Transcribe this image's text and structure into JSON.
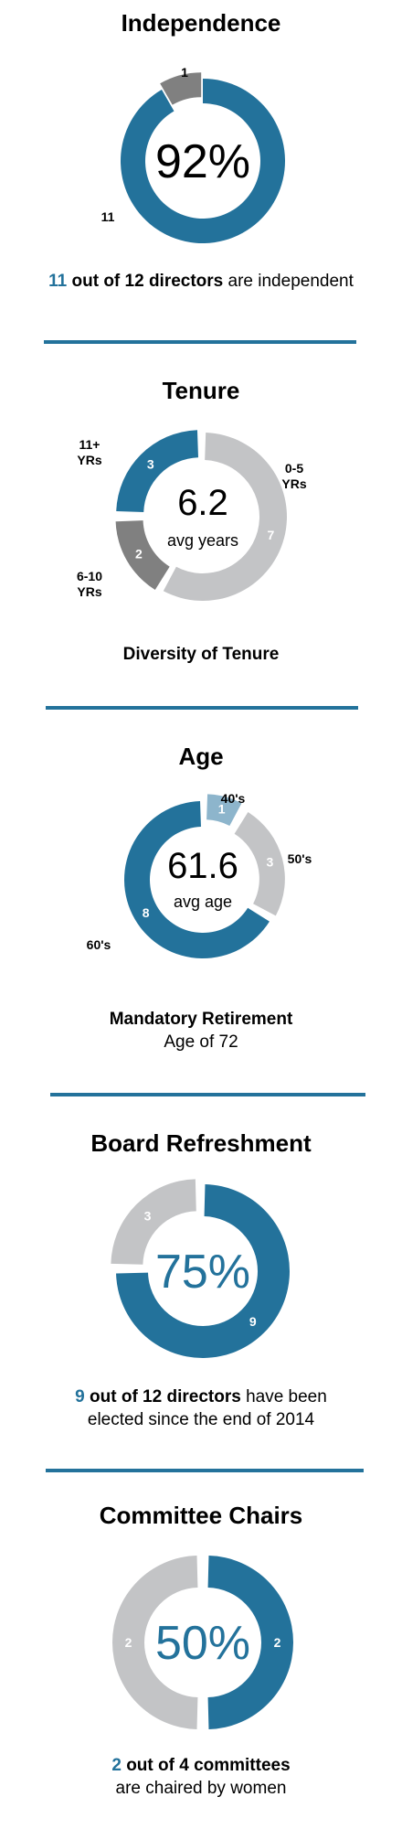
{
  "colors": {
    "blue": "#23729b",
    "dark_grey": "#808080",
    "light_grey": "#c3c4c6",
    "light_blue": "#8db5cc"
  },
  "chart_data": [
    {
      "type": "pie",
      "title": "Independence",
      "center_text": "92%",
      "center_subtext": "",
      "slices": [
        {
          "label": "11",
          "value": 11,
          "color": "#23729b"
        },
        {
          "label": "1",
          "value": 1,
          "color": "#808080"
        }
      ],
      "caption": {
        "highlight": "11",
        "bold": "out of 12 directors",
        "rest": "are independent"
      }
    },
    {
      "type": "pie",
      "title": "Tenure",
      "center_text": "6.2",
      "center_subtext": "avg years",
      "slices": [
        {
          "label": "0-5 YRs",
          "value": 7,
          "color": "#c3c4c6"
        },
        {
          "label": "6-10 YRs",
          "value": 2,
          "color": "#808080"
        },
        {
          "label": "11+ YRs",
          "value": 3,
          "color": "#23729b"
        }
      ],
      "caption": {
        "bold_line": "Diversity of Tenure"
      }
    },
    {
      "type": "pie",
      "title": "Age",
      "center_text": "61.6",
      "center_subtext": "avg age",
      "slices": [
        {
          "label": "40's",
          "value": 1,
          "color": "#8db5cc"
        },
        {
          "label": "50's",
          "value": 3,
          "color": "#c3c4c6"
        },
        {
          "label": "60's",
          "value": 8,
          "color": "#23729b"
        }
      ],
      "caption": {
        "bold_line": "Mandatory Retirement",
        "line2": "Age of 72"
      }
    },
    {
      "type": "pie",
      "title": "Board Refreshment",
      "center_text": "75%",
      "center_subtext": "",
      "slices": [
        {
          "label": "9",
          "value": 9,
          "color": "#23729b"
        },
        {
          "label": "3",
          "value": 3,
          "color": "#c3c4c6"
        }
      ],
      "caption": {
        "highlight": "9",
        "bold": "out of 12 directors",
        "rest": "have been",
        "line2": "elected since the end of 2014"
      }
    },
    {
      "type": "pie",
      "title": "Committee Chairs",
      "center_text": "50%",
      "center_subtext": "",
      "slices": [
        {
          "label": "2",
          "value": 2,
          "color": "#23729b"
        },
        {
          "label": "2",
          "value": 2,
          "color": "#c3c4c6"
        }
      ],
      "caption": {
        "highlight": "2",
        "bold": "out of 4 committees",
        "line2": "are chaired by women"
      }
    }
  ]
}
